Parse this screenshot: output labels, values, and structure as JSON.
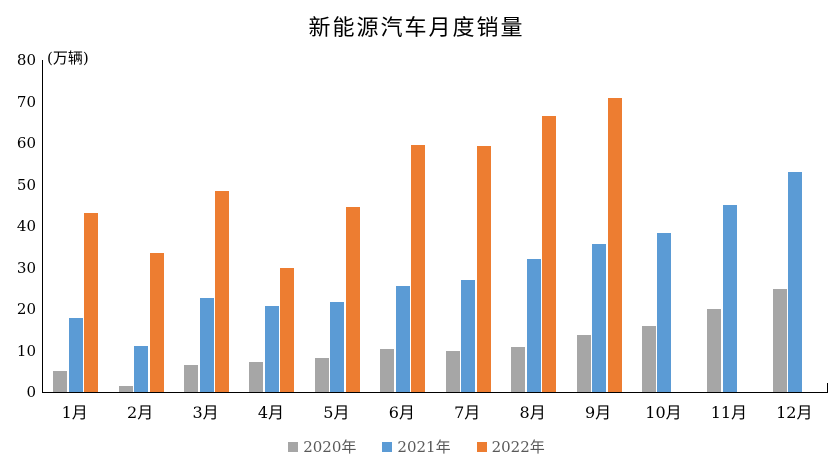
{
  "title": "新能源汽车月度销量",
  "unit_label": "(万辆)",
  "chart_data": {
    "type": "bar",
    "title": "新能源汽车月度销量",
    "ylabel": "(万辆)",
    "xlabel": "",
    "ylim": [
      0,
      80
    ],
    "yticks": [
      0,
      10,
      20,
      30,
      40,
      50,
      60,
      70,
      80
    ],
    "grid": false,
    "legend_position": "bottom",
    "categories": [
      "1月",
      "2月",
      "3月",
      "4月",
      "5月",
      "6月",
      "7月",
      "8月",
      "9月",
      "10月",
      "11月",
      "12月"
    ],
    "series": [
      {
        "name": "2020年",
        "color": "#A6A6A6",
        "values": [
          5.0,
          1.5,
          6.6,
          7.2,
          8.2,
          10.4,
          9.9,
          10.9,
          13.8,
          16.0,
          20.0,
          24.8
        ]
      },
      {
        "name": "2021年",
        "color": "#5B9BD5",
        "values": [
          17.9,
          11.1,
          22.6,
          20.7,
          21.7,
          25.6,
          27.1,
          32.1,
          35.7,
          38.3,
          45.0,
          53.1
        ]
      },
      {
        "name": "2022年",
        "color": "#ED7D31",
        "values": [
          43.1,
          33.4,
          48.4,
          29.9,
          44.7,
          59.6,
          59.3,
          66.6,
          70.8,
          null,
          null,
          null
        ]
      }
    ]
  },
  "colors": {
    "axis": "#000000",
    "legend_text": "#595959",
    "background": "#ffffff"
  }
}
